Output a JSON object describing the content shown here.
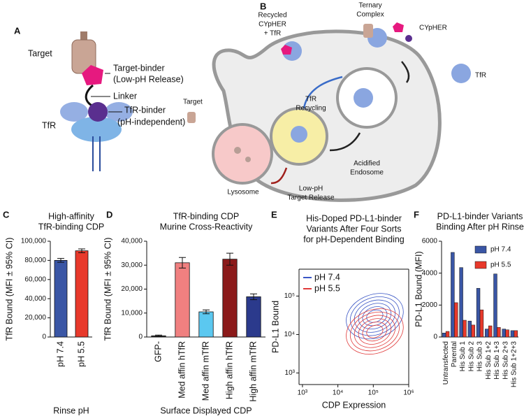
{
  "panels": [
    {
      "letter": "A",
      "labels": [
        "Target",
        "Target-binder",
        "(Low-pH Release)",
        "Linker",
        "TfR-binder",
        "(pH-independent)",
        "TfR"
      ]
    },
    {
      "letter": "B",
      "labels": [
        "Recycled",
        "CYpHER",
        "+ TfR",
        "Ternary",
        "Complex",
        "CYpHER",
        "Target",
        "TfR",
        "TfR",
        "Recycling",
        "Acidified",
        "Endosome",
        "Lysosome",
        "Low-pH",
        "Target Release"
      ]
    }
  ],
  "chart_data": [
    {
      "type": "bar",
      "panel": "C",
      "title": [
        "High-affinity",
        "TfR-binding CDP"
      ],
      "y_label": "TfR Bound (MFI ± 95% CI)",
      "x_label": "Rinse pH",
      "categories": [
        "pH 7.4",
        "pH 5.5"
      ],
      "values": [
        80000,
        90000
      ],
      "errors": [
        2000,
        2000
      ],
      "colors": [
        "#3a56a5",
        "#e8392b"
      ],
      "ylim": [
        0,
        100000
      ],
      "yticks": [
        0,
        {
          "value": 20000,
          "label": "20,000"
        },
        {
          "value": 40000,
          "label": "40,000"
        },
        {
          "value": 60000,
          "label": "60,000"
        },
        {
          "value": 80000,
          "label": "80,000"
        },
        {
          "value": 100000,
          "label": "100,000"
        }
      ]
    },
    {
      "type": "bar",
      "panel": "D",
      "title": [
        "TfR-binding CDP",
        "Murine Cross-Reactivity"
      ],
      "y_label": "TfR Bound (MFI ± 95% CI)",
      "x_label": "Surface Displayed CDP",
      "categories": [
        "GFP-",
        "Med affin hTfR",
        "Med affin mTfR",
        "High affin hTfR",
        "High affin mTfR"
      ],
      "values": [
        500,
        31000,
        10500,
        32500,
        16800
      ],
      "errors": [
        300,
        2200,
        800,
        2500,
        1200
      ],
      "colors": [
        "#333333",
        "#f08080",
        "#5bc8f0",
        "#8b1a1a",
        "#2b3a8c"
      ],
      "ylim": [
        0,
        40000
      ],
      "yticks": [
        0,
        {
          "value": 10000,
          "label": "10,000"
        },
        {
          "value": 20000,
          "label": "20,000"
        },
        {
          "value": 30000,
          "label": "30,000"
        },
        {
          "value": 40000,
          "label": "40,000"
        }
      ]
    },
    {
      "type": "contour",
      "panel": "E",
      "title": [
        "His-Doped PD-L1-binder",
        "Variants After Four Sorts",
        "for pH-Dependent Binding"
      ],
      "y_label": "PD-L1 Bound",
      "x_label": "CDP Expression",
      "log_scale": true,
      "series": [
        {
          "name": "pH 7.4",
          "color": "#3a56c5"
        },
        {
          "name": "pH 5.5",
          "color": "#e03a3a"
        }
      ],
      "xlim": [
        800,
        1000000
      ],
      "ylim": [
        500,
        500000
      ],
      "xticks": [
        {
          "value": 1000,
          "label": "10³"
        },
        {
          "value": 10000,
          "label": "10⁴"
        },
        {
          "value": 100000,
          "label": "10⁵"
        },
        {
          "value": 1000000,
          "label": "10⁶"
        }
      ],
      "yticks": [
        {
          "value": 1000,
          "label": "10³"
        },
        {
          "value": 10000,
          "label": "10⁴"
        },
        {
          "value": 100000,
          "label": "10⁵"
        }
      ]
    },
    {
      "type": "grouped_bar",
      "panel": "F",
      "title": [
        "PD-L1-binder Variants",
        "Binding After pH Rinse"
      ],
      "y_label": "PD-L1 Bound (MFI)",
      "categories": [
        "Untransfected",
        "Parental",
        "His Sub 1",
        "His Sub 2",
        "His Sub 3",
        "His Sub 1+2",
        "His Sub 1+3",
        "His Sub 2+3",
        "His Sub 1+2+3"
      ],
      "category_label_colors": [
        "#111111",
        "#111111",
        "#111111",
        "#111111",
        "#111111",
        "#111111",
        "#e03a3a",
        "#111111",
        "#111111"
      ],
      "series": [
        {
          "name": "pH 7.4",
          "color": "#3a56a5",
          "values": [
            250,
            5300,
            4350,
            1000,
            3050,
            500,
            3950,
            500,
            400
          ]
        },
        {
          "name": "pH 5.5",
          "color": "#e8392b",
          "values": [
            350,
            2150,
            1050,
            750,
            1700,
            700,
            600,
            450,
            400
          ]
        }
      ],
      "ylim": [
        0,
        6000
      ],
      "yticks": [
        0,
        2000,
        4000,
        6000
      ]
    }
  ]
}
